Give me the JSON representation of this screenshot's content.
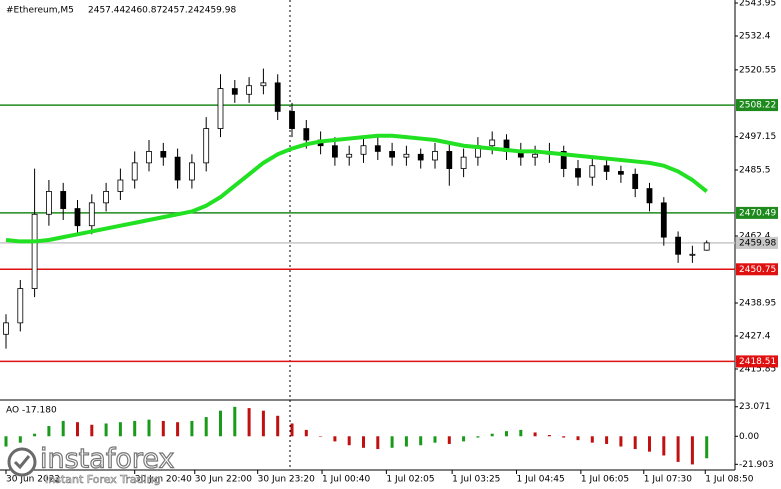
{
  "header": {
    "symbol": "#Ethereum,M5"
  },
  "chart_data": {
    "type": "candlestick",
    "open": [
      2428,
      2432,
      2444,
      2470,
      2478,
      2472,
      2466,
      2474,
      2478,
      2482,
      2488,
      2492,
      2490,
      2482,
      2488,
      2500,
      2514,
      2512,
      2515,
      2516,
      2506,
      2500,
      2496,
      2494,
      2490,
      2491,
      2494,
      2492,
      2490,
      2491,
      2489,
      2492,
      2486,
      2490,
      2494,
      2496,
      2492,
      2490,
      2491,
      2492,
      2486,
      2483,
      2487,
      2485,
      2484,
      2479,
      2474,
      2462,
      2456,
      2457.44
    ],
    "high": [
      2435,
      2447,
      2486,
      2482,
      2481,
      2475,
      2477,
      2481,
      2486,
      2492,
      2496,
      2495,
      2493,
      2491,
      2504,
      2519,
      2517,
      2518,
      2521,
      2519,
      2509,
      2503,
      2499,
      2497,
      2494,
      2497,
      2497,
      2495,
      2494,
      2493,
      2495,
      2495,
      2493,
      2497,
      2499,
      2498,
      2495,
      2494,
      2495,
      2494,
      2489,
      2490,
      2489,
      2487,
      2486,
      2481,
      2476,
      2464,
      2459,
      2460.87
    ],
    "low": [
      2423,
      2429,
      2441,
      2466,
      2468,
      2463,
      2463,
      2471,
      2475,
      2479,
      2485,
      2487,
      2479,
      2479,
      2485,
      2497,
      2509,
      2509,
      2512,
      2503,
      2497,
      2493,
      2491,
      2487,
      2487,
      2488,
      2489,
      2487,
      2487,
      2486,
      2486,
      2480,
      2483,
      2487,
      2491,
      2489,
      2487,
      2487,
      2488,
      2483,
      2480,
      2480,
      2482,
      2481,
      2476,
      2471,
      2459,
      2453,
      2453,
      2457.24
    ],
    "close": [
      2432,
      2444,
      2470,
      2478,
      2472,
      2466,
      2474,
      2478,
      2482,
      2488,
      2492,
      2490,
      2482,
      2488,
      2500,
      2514,
      2512,
      2515,
      2516,
      2506,
      2500,
      2496,
      2494,
      2490,
      2491,
      2494,
      2492,
      2490,
      2491,
      2489,
      2492,
      2486,
      2490,
      2494,
      2496,
      2492,
      2490,
      2491,
      2492,
      2486,
      2483,
      2487,
      2485,
      2484,
      2479,
      2474,
      2462,
      2456,
      2456,
      2459.98
    ],
    "up_color": "#ffffff",
    "down_color": "#000000",
    "ma": {
      "color": "#22e022",
      "values": [
        2461,
        2460.5,
        2460.5,
        2461,
        2462,
        2463,
        2464,
        2465,
        2466,
        2467,
        2468,
        2469,
        2470,
        2471,
        2473,
        2476,
        2480,
        2484,
        2488,
        2491,
        2493,
        2494.5,
        2495.5,
        2496,
        2496.5,
        2497,
        2497.5,
        2497.5,
        2497,
        2496.5,
        2496,
        2495,
        2494,
        2493.5,
        2493,
        2492.5,
        2492,
        2492,
        2491.5,
        2491,
        2490.5,
        2490,
        2489.5,
        2489,
        2488.5,
        2488,
        2487,
        2485,
        2482,
        2478
      ]
    },
    "levels": [
      {
        "value": 2508.22,
        "color": "#1e8a1e"
      },
      {
        "value": 2470.49,
        "color": "#1e8a1e"
      },
      {
        "value": 2459.98,
        "color": "#c8c8c8"
      },
      {
        "value": 2450.75,
        "color": "#e01010"
      },
      {
        "value": 2418.51,
        "color": "#e01010"
      }
    ],
    "ylim": [
      2415.85,
      2543.95
    ],
    "yticks": [
      2543.95,
      2532.4,
      2520.55,
      2497.15,
      2485.5,
      2462.4,
      2438.95,
      2427.4,
      2415.85
    ],
    "xticks": [
      {
        "value": 0,
        "label": "30 Jun 2022"
      },
      {
        "value": 9,
        "label": "30 Jun 20:40"
      },
      {
        "value": 13.2,
        "label": "30 Jun 22:00"
      },
      {
        "value": 17.6,
        "label": "30 Jun 23:20"
      },
      {
        "value": 22.1,
        "label": "1 Jul 00:40"
      },
      {
        "value": 26.6,
        "label": "1 Jul 02:05"
      },
      {
        "value": 31.2,
        "label": "1 Jul 03:25"
      },
      {
        "value": 35.7,
        "label": "1 Jul 04:45"
      },
      {
        "value": 40.2,
        "label": "1 Jul 06:05"
      },
      {
        "value": 44.6,
        "label": "1 Jul 07:30"
      },
      {
        "value": 48.9,
        "label": "1 Jul 08:50"
      }
    ],
    "ao": {
      "label": "AO -17.180",
      "values": [
        -8,
        -5,
        2,
        8,
        12,
        11,
        9,
        10,
        11,
        12,
        13,
        12,
        11,
        12,
        15,
        20,
        23,
        22,
        20,
        16,
        10,
        5,
        0,
        -4,
        -7,
        -9,
        -10,
        -9,
        -8,
        -7,
        -5,
        -6,
        -4,
        -1,
        2,
        4,
        5,
        3,
        1,
        -1,
        -3,
        -5,
        -6,
        -8,
        -10,
        -12,
        -15,
        -20,
        -22,
        -17.18
      ],
      "up_color": "#1a9a1a",
      "down_color": "#c01010",
      "ylim": [
        -24,
        26
      ],
      "yticks": [
        23.071,
        {
          "value": 0,
          "label": "0.00"
        },
        -21.903
      ]
    }
  },
  "watermark": {
    "brand": "instaforex",
    "tagline": "Instant Forex Trading"
  }
}
